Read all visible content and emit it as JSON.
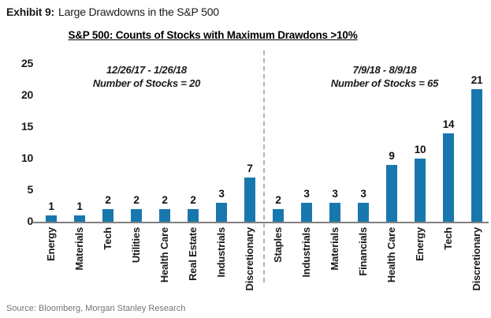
{
  "exhibit": {
    "label": "Exhibit 9:",
    "title": "Large Drawdowns in the S&P 500"
  },
  "chart_data": {
    "type": "bar",
    "title": "S&P 500: Counts of Stocks with Maximum Drawdons >10%",
    "bar_color": "#1878ae",
    "ylim": [
      0,
      25
    ],
    "yticks": [
      0,
      5,
      10,
      15,
      20,
      25
    ],
    "grid": false,
    "legend": false,
    "groups": [
      {
        "annotation_line1": "12/26/17 - 1/26/18",
        "annotation_line2": "Number of Stocks = 20",
        "categories": [
          "Energy",
          "Materials",
          "Tech",
          "Utilities",
          "Health Care",
          "Real Estate",
          "Industrials",
          "Discretionary"
        ],
        "values": [
          1,
          1,
          2,
          2,
          2,
          2,
          3,
          7
        ]
      },
      {
        "annotation_line1": "7/9/18 - 8/9/18",
        "annotation_line2": "Number of Stocks = 65",
        "categories": [
          "Staples",
          "Industrials",
          "Materials",
          "Financials",
          "Health Care",
          "Energy",
          "Tech",
          "Discretionary"
        ],
        "values": [
          2,
          3,
          3,
          3,
          9,
          10,
          14,
          21
        ]
      }
    ]
  },
  "source": "Source: Bloomberg, Morgan Stanley Research"
}
